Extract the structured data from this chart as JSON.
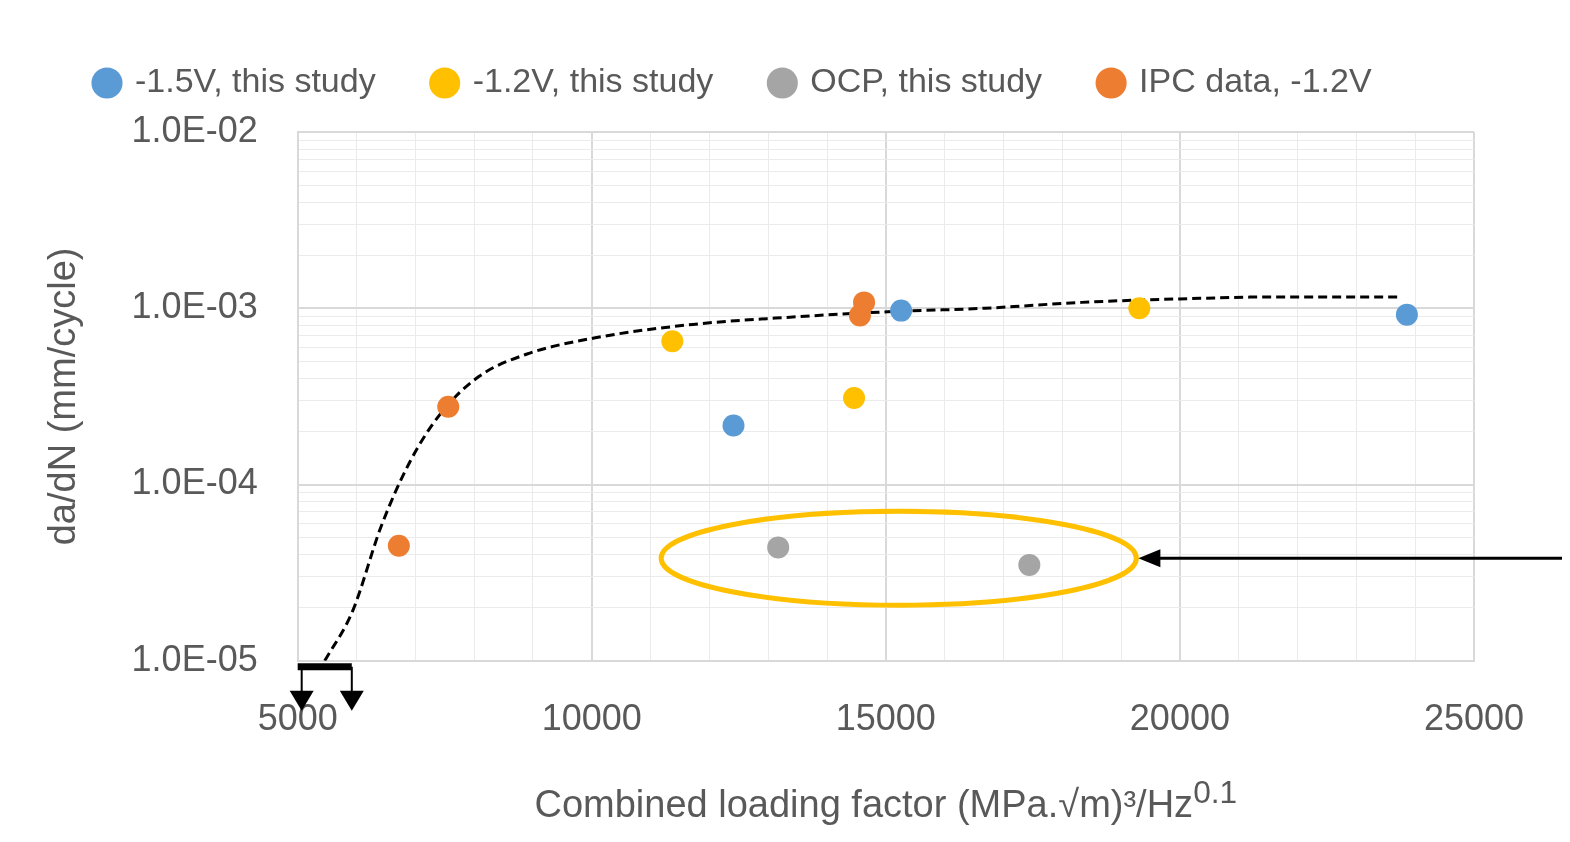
{
  "chart_data": {
    "type": "scatter",
    "xlabel": "Combined loading factor (MPa.√m)³/Hz$^{0.1}$",
    "ylabel": "da/dN (mm/cycle)",
    "log": "y",
    "grid": true,
    "legend": "top",
    "marker": "circle",
    "xlim": [
      5000,
      25000
    ],
    "ylim": [
      1e-05,
      0.01
    ],
    "xticks": [
      5000,
      {
        "value": 6000,
        "label": null
      },
      {
        "value": 7000,
        "label": null
      },
      {
        "value": 8000,
        "label": null
      },
      {
        "value": 9000,
        "label": null
      },
      10000,
      {
        "value": 11000,
        "label": null
      },
      {
        "value": 12000,
        "label": null
      },
      {
        "value": 13000,
        "label": null
      },
      {
        "value": 14000,
        "label": null
      },
      15000,
      {
        "value": 16000,
        "label": null
      },
      {
        "value": 17000,
        "label": null
      },
      {
        "value": 18000,
        "label": null
      },
      {
        "value": 19000,
        "label": null
      },
      20000,
      {
        "value": 21000,
        "label": null
      },
      {
        "value": 22000,
        "label": null
      },
      {
        "value": 23000,
        "label": null
      },
      {
        "value": 24000,
        "label": null
      },
      25000
    ],
    "yticks": [
      {
        "value": 1e-05,
        "label": "1.0E-05"
      },
      {
        "value": 2e-05,
        "label": null
      },
      {
        "value": 3e-05,
        "label": null
      },
      {
        "value": 4e-05,
        "label": null
      },
      {
        "value": 5e-05,
        "label": null
      },
      {
        "value": 6e-05,
        "label": null
      },
      {
        "value": 7e-05,
        "label": null
      },
      {
        "value": 8e-05,
        "label": null
      },
      {
        "value": 9e-05,
        "label": null
      },
      {
        "value": 0.0001,
        "label": "1.0E-04"
      },
      {
        "value": 0.0002,
        "label": null
      },
      {
        "value": 0.0003,
        "label": null
      },
      {
        "value": 0.0004,
        "label": null
      },
      {
        "value": 0.0005,
        "label": null
      },
      {
        "value": 0.0006,
        "label": null
      },
      {
        "value": 0.0007,
        "label": null
      },
      {
        "value": 0.0008,
        "label": null
      },
      {
        "value": 0.0009,
        "label": null
      },
      {
        "value": 0.001,
        "label": "1.0E-03"
      },
      {
        "value": 0.002,
        "label": null
      },
      {
        "value": 0.003,
        "label": null
      },
      {
        "value": 0.004,
        "label": null
      },
      {
        "value": 0.005,
        "label": null
      },
      {
        "value": 0.006,
        "label": null
      },
      {
        "value": 0.007,
        "label": null
      },
      {
        "value": 0.008,
        "label": null
      },
      {
        "value": 0.009,
        "label": null
      },
      {
        "value": 0.01,
        "label": "1.0E-02"
      }
    ],
    "series": [
      {
        "name": "-1.5V, this study",
        "color": "#5b9bd5",
        "type": "scatter",
        "x": [
          12410,
          15260,
          23860
        ],
        "values": [
          0.000216,
          0.00097,
          0.00092
        ]
      },
      {
        "name": "-1.2V, this study",
        "color": "#ffc000",
        "type": "scatter",
        "x": [
          11370,
          14460,
          19310
        ],
        "values": [
          0.00065,
          0.00031,
          0.001
        ]
      },
      {
        "name": "OCP, this study",
        "color": "#a5a5a5",
        "type": "scatter",
        "x": [
          13170,
          17440
        ],
        "values": [
          4.4e-05,
          3.5e-05
        ]
      },
      {
        "name": "IPC data, -1.2V",
        "color": "#ed7d31",
        "type": "scatter",
        "x": [
          6720,
          7560,
          14560,
          14630
        ],
        "values": [
          4.5e-05,
          0.000276,
          0.00091,
          0.00108
        ]
      },
      {
        "color": "#000000",
        "type": "line",
        "line_style": "dashed",
        "marker": "none",
        "x": [
          5460,
          5930,
          6420,
          6920,
          7420,
          8080,
          8900,
          10060,
          11720,
          13370,
          15030,
          16680,
          18330,
          19990,
          21640,
          23710
        ],
        "values": [
          1e-05,
          1.9e-05,
          5.8e-05,
          0.000137,
          0.00025,
          0.00041,
          0.00055,
          0.00068,
          0.00081,
          0.00089,
          0.000955,
          0.001,
          0.00108,
          0.00113,
          0.00116,
          0.00116
        ]
      }
    ]
  }
}
